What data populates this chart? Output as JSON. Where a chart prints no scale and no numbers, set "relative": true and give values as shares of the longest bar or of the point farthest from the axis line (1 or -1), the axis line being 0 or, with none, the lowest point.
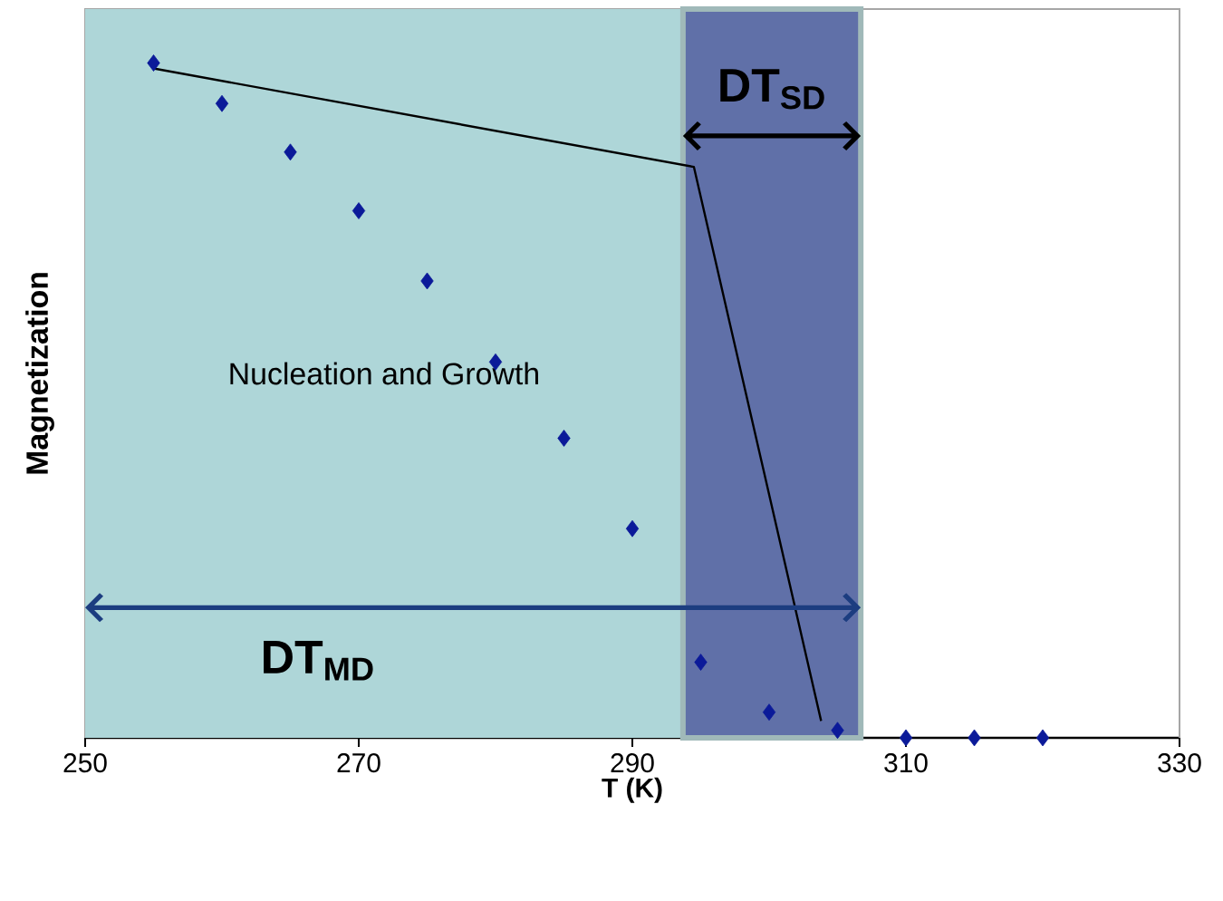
{
  "chart_data": {
    "type": "scatter",
    "relative": true,
    "xlabel": "T (K)",
    "ylabel": "Magnetization",
    "xlim": [
      250,
      330
    ],
    "xticks": [
      250,
      270,
      290,
      310,
      330
    ],
    "marker": "diamond",
    "grid": false,
    "x": [
      255,
      260,
      265,
      270,
      275,
      280,
      285,
      290,
      295,
      300,
      305,
      310,
      315,
      320
    ],
    "series": [
      {
        "color": "#0b1a99",
        "values": [
          1,
          0.94,
          0.868,
          0.781,
          0.677,
          0.557,
          0.444,
          0.31,
          0.112,
          0.038,
          0.011,
          0,
          0,
          0
        ]
      },
      {
        "type": "line",
        "color": "#000000",
        "marker": "none",
        "x": [
          255,
          294.5,
          303.8
        ],
        "values": [
          0.992,
          0.846,
          0.025
        ]
      }
    ],
    "bands": [
      {
        "axis": "x",
        "from": 250,
        "to": 293.7,
        "color": "#aed6d8"
      },
      {
        "axis": "x",
        "from": 293.7,
        "to": 306.7,
        "color": "#6070a8"
      }
    ],
    "annotations": [
      "Nucleation and Growth",
      "DT$_{SD}$",
      "DT$_{MD}$"
    ]
  }
}
